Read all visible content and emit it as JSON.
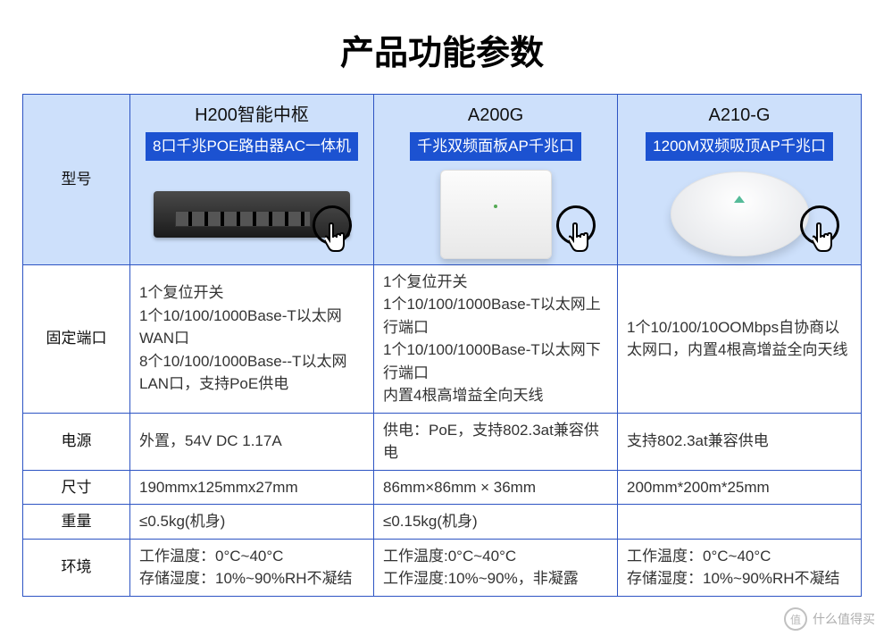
{
  "title": "产品功能参数",
  "colors": {
    "border": "#2d54c3",
    "header_bg": "#cde0fb",
    "tag_bg": "#1c52d1",
    "tag_text": "#ffffff",
    "text": "#333333"
  },
  "row_labels": {
    "model": "型号",
    "ports": "固定端口",
    "power": "电源",
    "size": "尺寸",
    "weight": "重量",
    "env": "环境"
  },
  "products": [
    {
      "name": "H200智能中枢",
      "tag": "8口千兆POE路由器AC一体机",
      "ports": "1个复位开关\n1个10/100/1000Base-T以太网WAN口\n8个10/100/1000Base--T以太网LAN口，支持PoE供电",
      "power": "外置，54V DC 1.17A",
      "size": "190mmx125mmx27mm",
      "weight": "≤0.5kg(机身)",
      "env": "工作温度：0°C~40°C\n存储湿度：10%~90%RH不凝结"
    },
    {
      "name": "A200G",
      "tag": "千兆双频面板AP千兆口",
      "ports": "1个复位开关\n1个10/100/1000Base-T以太网上行端口\n1个10/100/1000Base-T以太网下行端口\n内置4根高增益全向天线",
      "power": "供电：PoE，支持802.3at兼容供电",
      "size": "86mm×86mm × 36mm",
      "weight": "≤0.15kg(机身)",
      "env": "工作温度:0°C~40°C\n工作湿度:10%~90%，非凝露"
    },
    {
      "name": "A210-G",
      "tag": "1200M双频吸顶AP千兆口",
      "ports": "1个10/100/10OOMbps自协商以太网口，内置4根高增益全向天线",
      "power": "支持802.3at兼容供电",
      "size": "200mm*200m*25mm",
      "weight": "",
      "env": "工作温度：0°C~40°C\n存储湿度：10%~90%RH不凝结"
    }
  ],
  "watermark": "什么值得买"
}
